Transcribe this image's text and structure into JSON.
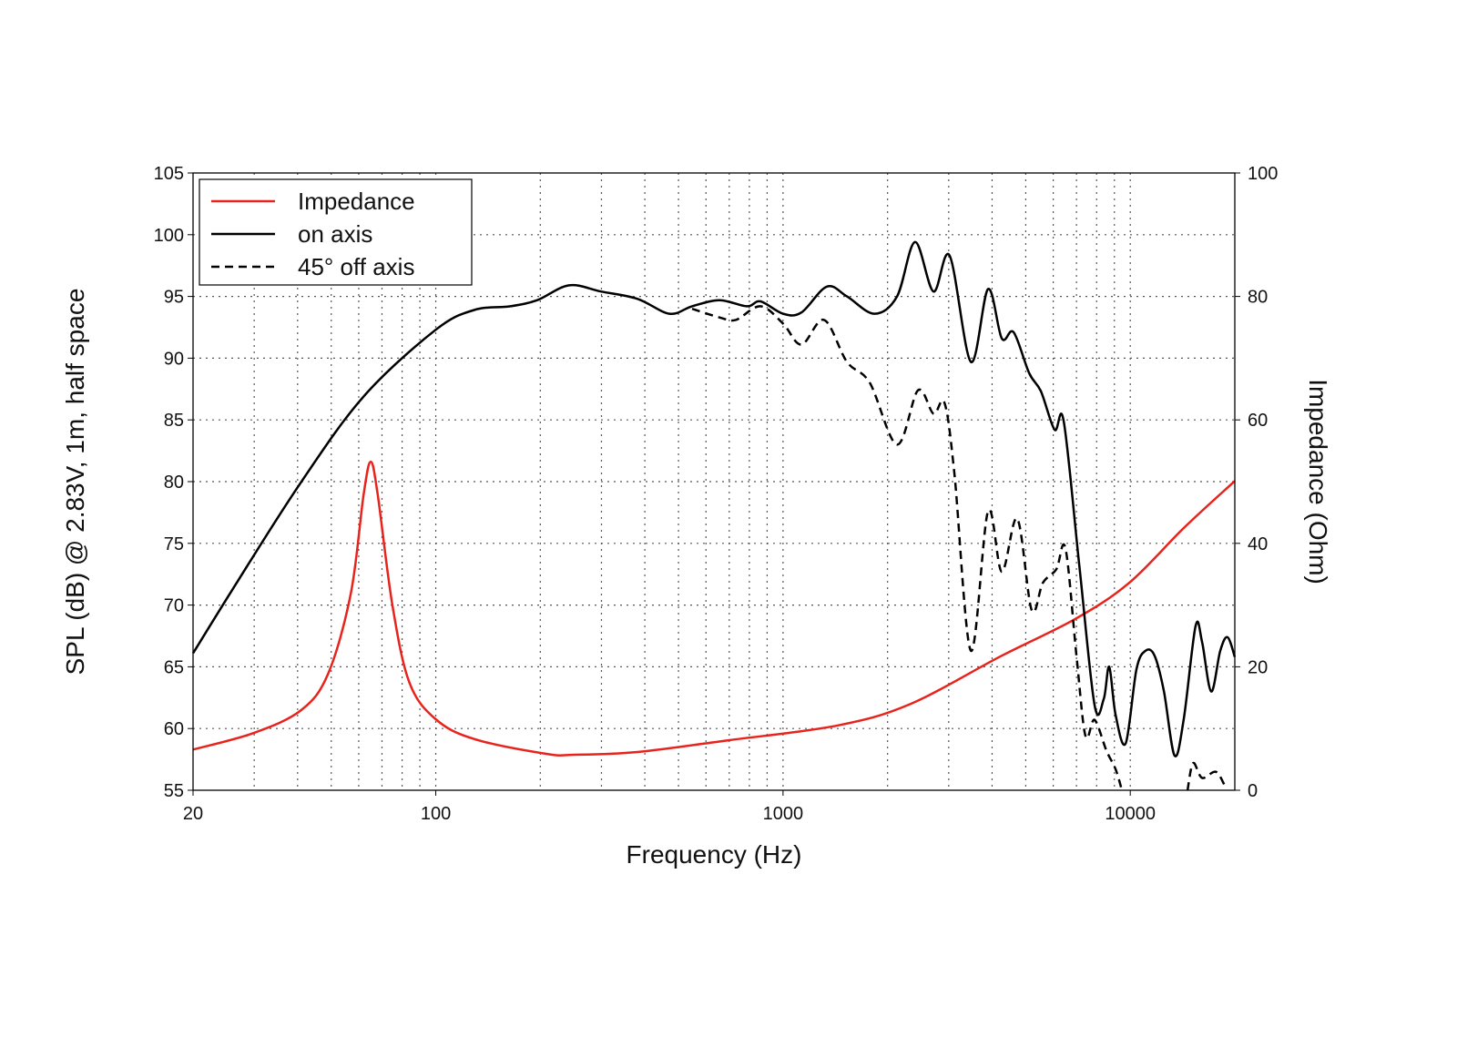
{
  "chart_data": {
    "type": "line",
    "title": "",
    "xlabel": "Frequency (Hz)",
    "ylabel": "SPL (dB) @ 2.83V, 1m, half space",
    "y2label": "Impedance (Ohm)",
    "xscale": "log",
    "xlim": [
      20,
      20000
    ],
    "ylim": [
      55,
      105
    ],
    "y2lim": [
      0,
      100
    ],
    "grid": true,
    "legend_position": "top-left",
    "xticks": [
      20,
      100,
      1000,
      10000
    ],
    "xtick_labels": [
      "20",
      "100",
      "1000",
      "10000"
    ],
    "yticks": [
      "55",
      "60",
      "65",
      "70",
      "75",
      "80",
      "85",
      "90",
      "95",
      "100",
      "105"
    ],
    "y2ticks": [
      "0",
      "20",
      "40",
      "60",
      "80",
      "100"
    ],
    "series": [
      {
        "name": "Impedance",
        "axis": "right",
        "color": "#e8231c",
        "dash": "solid",
        "points": [
          [
            20,
            6.6
          ],
          [
            30,
            9.3
          ],
          [
            41,
            13
          ],
          [
            49,
            18.9
          ],
          [
            57,
            32
          ],
          [
            62,
            48
          ],
          [
            65,
            53.2
          ],
          [
            68,
            48
          ],
          [
            75,
            30
          ],
          [
            84,
            17.4
          ],
          [
            100,
            11.5
          ],
          [
            129,
            8.3
          ],
          [
            208,
            5.9
          ],
          [
            250,
            5.75
          ],
          [
            381,
            6.2
          ],
          [
            697,
            8.1
          ],
          [
            1438,
            10.5
          ],
          [
            2332,
            14
          ],
          [
            4266,
            21.8
          ],
          [
            6920,
            27.7
          ],
          [
            9930,
            33.6
          ],
          [
            14260,
            42.5
          ],
          [
            20000,
            50.1
          ]
        ]
      },
      {
        "name": "on axis",
        "axis": "left",
        "color": "#000000",
        "dash": "solid",
        "points": [
          [
            20,
            66.1
          ],
          [
            26.7,
            71.8
          ],
          [
            40.8,
            79.9
          ],
          [
            62,
            86.9
          ],
          [
            100,
            92.3
          ],
          [
            129,
            93.9
          ],
          [
            164,
            94.2
          ],
          [
            196,
            94.7
          ],
          [
            242,
            95.9
          ],
          [
            299,
            95.4
          ],
          [
            381,
            94.8
          ],
          [
            471,
            93.6
          ],
          [
            547,
            94.2
          ],
          [
            656,
            94.7
          ],
          [
            787,
            94.2
          ],
          [
            861,
            94.6
          ],
          [
            1000,
            93.6
          ],
          [
            1130,
            93.7
          ],
          [
            1337,
            95.8
          ],
          [
            1528,
            95.0
          ],
          [
            1832,
            93.6
          ],
          [
            2130,
            95.0
          ],
          [
            2400,
            99.4
          ],
          [
            2712,
            95.4
          ],
          [
            3020,
            98.3
          ],
          [
            3476,
            89.7
          ],
          [
            3894,
            95.6
          ],
          [
            4266,
            91.6
          ],
          [
            4614,
            92.1
          ],
          [
            5112,
            88.8
          ],
          [
            5532,
            87.3
          ],
          [
            6055,
            84.2
          ],
          [
            6432,
            84.9
          ],
          [
            7128,
            73.3
          ],
          [
            7892,
            61.9
          ],
          [
            8388,
            62.4
          ],
          [
            8696,
            65.0
          ],
          [
            9072,
            61.1
          ],
          [
            9700,
            58.8
          ],
          [
            10420,
            64.8
          ],
          [
            11066,
            66.3
          ],
          [
            11750,
            65.9
          ],
          [
            12500,
            63.0
          ],
          [
            13420,
            57.8
          ],
          [
            14260,
            60.8
          ],
          [
            15420,
            68.3
          ],
          [
            16100,
            67.0
          ],
          [
            17100,
            63.0
          ],
          [
            18160,
            66.3
          ],
          [
            19060,
            67.4
          ],
          [
            20000,
            65.8
          ]
        ]
      },
      {
        "name": "45° off axis",
        "axis": "left",
        "color": "#000000",
        "dash": "dashed",
        "points": [
          [
            547,
            94.0
          ],
          [
            656,
            93.3
          ],
          [
            731,
            93.1
          ],
          [
            861,
            94.2
          ],
          [
            1000,
            92.8
          ],
          [
            1130,
            91.1
          ],
          [
            1313,
            93.1
          ],
          [
            1528,
            89.7
          ],
          [
            1778,
            88.0
          ],
          [
            2130,
            83.0
          ],
          [
            2448,
            87.4
          ],
          [
            2712,
            85.5
          ],
          [
            2916,
            86.4
          ],
          [
            3115,
            80.7
          ],
          [
            3476,
            66.3
          ],
          [
            3894,
            77.6
          ],
          [
            4266,
            72.7
          ],
          [
            4727,
            77.0
          ],
          [
            5200,
            69.6
          ],
          [
            5600,
            71.8
          ],
          [
            6124,
            72.9
          ],
          [
            6504,
            74.6
          ],
          [
            7000,
            65.9
          ],
          [
            7430,
            59.4
          ],
          [
            7892,
            60.7
          ],
          [
            8540,
            58.2
          ],
          [
            9072,
            56.7
          ],
          [
            9460,
            55.0
          ],
          null,
          [
            14620,
            55.0
          ],
          [
            15170,
            57.2
          ],
          [
            16100,
            56.0
          ],
          [
            17620,
            56.5
          ],
          [
            18700,
            55.4
          ]
        ]
      }
    ]
  }
}
